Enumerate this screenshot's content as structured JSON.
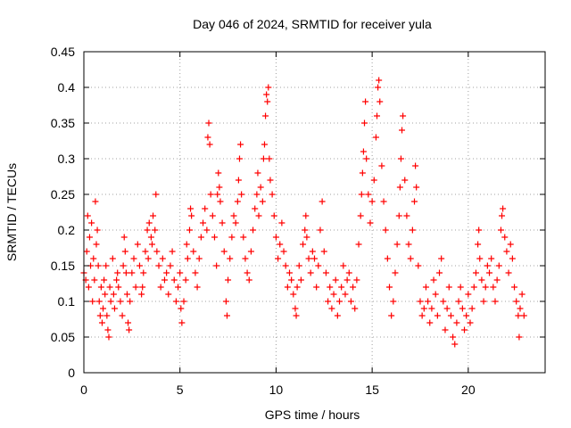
{
  "chart_data": {
    "type": "scatter",
    "title": "Day 046 of 2024, SRMTID for receiver yula",
    "xlabel": "GPS time / hours",
    "ylabel": "SRMTID / TECUs",
    "xlim": [
      0,
      24
    ],
    "ylim": [
      0,
      0.45
    ],
    "x_ticks": [
      0,
      5,
      10,
      15,
      20
    ],
    "x_tick_labels": [
      "0",
      "5",
      "10",
      "15",
      "20"
    ],
    "y_ticks": [
      0,
      0.05,
      0.1,
      0.15,
      0.2,
      0.25,
      0.3,
      0.35,
      0.4,
      0.45
    ],
    "y_tick_labels": [
      "0",
      "0.05",
      "0.1",
      "0.15",
      "0.2",
      "0.25",
      "0.3",
      "0.35",
      "0.4",
      "0.45"
    ],
    "grid": true,
    "marker": "+",
    "color": "#ff0000",
    "series": [
      {
        "name": "SRMTID",
        "points": [
          [
            0.0,
            0.14
          ],
          [
            0.1,
            0.13
          ],
          [
            0.15,
            0.17
          ],
          [
            0.2,
            0.22
          ],
          [
            0.25,
            0.12
          ],
          [
            0.3,
            0.19
          ],
          [
            0.35,
            0.15
          ],
          [
            0.4,
            0.21
          ],
          [
            0.45,
            0.1
          ],
          [
            0.5,
            0.16
          ],
          [
            0.55,
            0.13
          ],
          [
            0.6,
            0.24
          ],
          [
            0.65,
            0.18
          ],
          [
            0.7,
            0.2
          ],
          [
            0.75,
            0.15
          ],
          [
            0.8,
            0.1
          ],
          [
            0.85,
            0.08
          ],
          [
            0.9,
            0.12
          ],
          [
            0.95,
            0.07
          ],
          [
            1.0,
            0.09
          ],
          [
            1.05,
            0.13
          ],
          [
            1.1,
            0.11
          ],
          [
            1.15,
            0.15
          ],
          [
            1.2,
            0.08
          ],
          [
            1.25,
            0.06
          ],
          [
            1.3,
            0.05
          ],
          [
            1.35,
            0.12
          ],
          [
            1.4,
            0.1
          ],
          [
            1.5,
            0.16
          ],
          [
            1.55,
            0.11
          ],
          [
            1.6,
            0.09
          ],
          [
            1.7,
            0.13
          ],
          [
            1.75,
            0.14
          ],
          [
            1.8,
            0.12
          ],
          [
            1.9,
            0.1
          ],
          [
            2.0,
            0.08
          ],
          [
            2.05,
            0.15
          ],
          [
            2.1,
            0.19
          ],
          [
            2.15,
            0.17
          ],
          [
            2.2,
            0.14
          ],
          [
            2.25,
            0.11
          ],
          [
            2.3,
            0.07
          ],
          [
            2.35,
            0.06
          ],
          [
            2.4,
            0.1
          ],
          [
            2.5,
            0.14
          ],
          [
            2.6,
            0.16
          ],
          [
            2.7,
            0.12
          ],
          [
            2.8,
            0.18
          ],
          [
            2.9,
            0.15
          ],
          [
            3.0,
            0.11
          ],
          [
            3.05,
            0.12
          ],
          [
            3.1,
            0.14
          ],
          [
            3.2,
            0.17
          ],
          [
            3.3,
            0.2
          ],
          [
            3.35,
            0.16
          ],
          [
            3.4,
            0.21
          ],
          [
            3.5,
            0.19
          ],
          [
            3.55,
            0.18
          ],
          [
            3.6,
            0.22
          ],
          [
            3.7,
            0.2
          ],
          [
            3.75,
            0.25
          ],
          [
            3.8,
            0.17
          ],
          [
            3.9,
            0.15
          ],
          [
            4.0,
            0.12
          ],
          [
            4.1,
            0.16
          ],
          [
            4.2,
            0.13
          ],
          [
            4.3,
            0.14
          ],
          [
            4.4,
            0.11
          ],
          [
            4.5,
            0.15
          ],
          [
            4.6,
            0.17
          ],
          [
            4.7,
            0.13
          ],
          [
            4.8,
            0.1
          ],
          [
            4.9,
            0.12
          ],
          [
            5.0,
            0.14
          ],
          [
            5.05,
            0.09
          ],
          [
            5.1,
            0.07
          ],
          [
            5.2,
            0.1
          ],
          [
            5.3,
            0.13
          ],
          [
            5.35,
            0.18
          ],
          [
            5.4,
            0.16
          ],
          [
            5.5,
            0.2
          ],
          [
            5.55,
            0.23
          ],
          [
            5.6,
            0.22
          ],
          [
            5.7,
            0.17
          ],
          [
            5.8,
            0.14
          ],
          [
            5.9,
            0.12
          ],
          [
            6.0,
            0.16
          ],
          [
            6.1,
            0.19
          ],
          [
            6.2,
            0.21
          ],
          [
            6.3,
            0.23
          ],
          [
            6.4,
            0.2
          ],
          [
            6.45,
            0.33
          ],
          [
            6.5,
            0.35
          ],
          [
            6.55,
            0.32
          ],
          [
            6.6,
            0.25
          ],
          [
            6.7,
            0.22
          ],
          [
            6.8,
            0.19
          ],
          [
            6.9,
            0.15
          ],
          [
            6.95,
            0.25
          ],
          [
            7.0,
            0.28
          ],
          [
            7.05,
            0.26
          ],
          [
            7.1,
            0.24
          ],
          [
            7.2,
            0.21
          ],
          [
            7.3,
            0.17
          ],
          [
            7.4,
            0.1
          ],
          [
            7.45,
            0.08
          ],
          [
            7.5,
            0.13
          ],
          [
            7.6,
            0.16
          ],
          [
            7.7,
            0.19
          ],
          [
            7.8,
            0.22
          ],
          [
            7.9,
            0.21
          ],
          [
            8.0,
            0.24
          ],
          [
            8.05,
            0.27
          ],
          [
            8.1,
            0.3
          ],
          [
            8.15,
            0.32
          ],
          [
            8.2,
            0.25
          ],
          [
            8.3,
            0.19
          ],
          [
            8.4,
            0.16
          ],
          [
            8.5,
            0.14
          ],
          [
            8.6,
            0.13
          ],
          [
            8.7,
            0.17
          ],
          [
            8.8,
            0.2
          ],
          [
            8.9,
            0.23
          ],
          [
            9.0,
            0.25
          ],
          [
            9.05,
            0.28
          ],
          [
            9.1,
            0.22
          ],
          [
            9.2,
            0.26
          ],
          [
            9.3,
            0.24
          ],
          [
            9.35,
            0.3
          ],
          [
            9.4,
            0.32
          ],
          [
            9.45,
            0.36
          ],
          [
            9.5,
            0.39
          ],
          [
            9.55,
            0.38
          ],
          [
            9.6,
            0.4
          ],
          [
            9.65,
            0.3
          ],
          [
            9.7,
            0.27
          ],
          [
            9.8,
            0.25
          ],
          [
            9.9,
            0.22
          ],
          [
            10.0,
            0.19
          ],
          [
            10.1,
            0.16
          ],
          [
            10.2,
            0.18
          ],
          [
            10.3,
            0.21
          ],
          [
            10.4,
            0.17
          ],
          [
            10.5,
            0.15
          ],
          [
            10.6,
            0.12
          ],
          [
            10.7,
            0.14
          ],
          [
            10.8,
            0.13
          ],
          [
            10.9,
            0.11
          ],
          [
            11.0,
            0.09
          ],
          [
            11.05,
            0.08
          ],
          [
            11.1,
            0.12
          ],
          [
            11.2,
            0.15
          ],
          [
            11.3,
            0.13
          ],
          [
            11.4,
            0.18
          ],
          [
            11.5,
            0.2
          ],
          [
            11.55,
            0.22
          ],
          [
            11.6,
            0.19
          ],
          [
            11.7,
            0.16
          ],
          [
            11.8,
            0.14
          ],
          [
            11.9,
            0.17
          ],
          [
            12.0,
            0.16
          ],
          [
            12.1,
            0.12
          ],
          [
            12.2,
            0.15
          ],
          [
            12.3,
            0.2
          ],
          [
            12.4,
            0.24
          ],
          [
            12.5,
            0.17
          ],
          [
            12.6,
            0.14
          ],
          [
            12.7,
            0.1
          ],
          [
            12.8,
            0.12
          ],
          [
            12.9,
            0.09
          ],
          [
            13.0,
            0.11
          ],
          [
            13.1,
            0.13
          ],
          [
            13.2,
            0.08
          ],
          [
            13.3,
            0.1
          ],
          [
            13.4,
            0.12
          ],
          [
            13.5,
            0.15
          ],
          [
            13.6,
            0.11
          ],
          [
            13.7,
            0.13
          ],
          [
            13.8,
            0.14
          ],
          [
            13.9,
            0.1
          ],
          [
            14.0,
            0.12
          ],
          [
            14.1,
            0.09
          ],
          [
            14.2,
            0.13
          ],
          [
            14.3,
            0.18
          ],
          [
            14.4,
            0.22
          ],
          [
            14.45,
            0.25
          ],
          [
            14.5,
            0.28
          ],
          [
            14.55,
            0.31
          ],
          [
            14.6,
            0.35
          ],
          [
            14.65,
            0.38
          ],
          [
            14.7,
            0.3
          ],
          [
            14.8,
            0.25
          ],
          [
            14.9,
            0.21
          ],
          [
            15.0,
            0.24
          ],
          [
            15.1,
            0.27
          ],
          [
            15.2,
            0.33
          ],
          [
            15.25,
            0.36
          ],
          [
            15.3,
            0.4
          ],
          [
            15.35,
            0.41
          ],
          [
            15.4,
            0.38
          ],
          [
            15.5,
            0.29
          ],
          [
            15.6,
            0.24
          ],
          [
            15.7,
            0.2
          ],
          [
            15.8,
            0.16
          ],
          [
            15.9,
            0.12
          ],
          [
            16.0,
            0.08
          ],
          [
            16.1,
            0.1
          ],
          [
            16.2,
            0.14
          ],
          [
            16.3,
            0.18
          ],
          [
            16.4,
            0.22
          ],
          [
            16.45,
            0.26
          ],
          [
            16.5,
            0.3
          ],
          [
            16.55,
            0.34
          ],
          [
            16.6,
            0.36
          ],
          [
            16.7,
            0.27
          ],
          [
            16.8,
            0.22
          ],
          [
            16.9,
            0.18
          ],
          [
            17.0,
            0.16
          ],
          [
            17.1,
            0.2
          ],
          [
            17.2,
            0.24
          ],
          [
            17.25,
            0.29
          ],
          [
            17.3,
            0.26
          ],
          [
            17.4,
            0.15
          ],
          [
            17.5,
            0.1
          ],
          [
            17.6,
            0.08
          ],
          [
            17.7,
            0.09
          ],
          [
            17.8,
            0.12
          ],
          [
            17.9,
            0.1
          ],
          [
            18.0,
            0.07
          ],
          [
            18.1,
            0.09
          ],
          [
            18.2,
            0.13
          ],
          [
            18.3,
            0.11
          ],
          [
            18.4,
            0.08
          ],
          [
            18.5,
            0.14
          ],
          [
            18.6,
            0.16
          ],
          [
            18.7,
            0.1
          ],
          [
            18.8,
            0.06
          ],
          [
            18.9,
            0.09
          ],
          [
            19.0,
            0.12
          ],
          [
            19.1,
            0.08
          ],
          [
            19.2,
            0.05
          ],
          [
            19.3,
            0.04
          ],
          [
            19.4,
            0.07
          ],
          [
            19.5,
            0.1
          ],
          [
            19.6,
            0.12
          ],
          [
            19.7,
            0.09
          ],
          [
            19.8,
            0.06
          ],
          [
            19.9,
            0.08
          ],
          [
            20.0,
            0.11
          ],
          [
            20.1,
            0.07
          ],
          [
            20.2,
            0.09
          ],
          [
            20.3,
            0.12
          ],
          [
            20.4,
            0.14
          ],
          [
            20.5,
            0.18
          ],
          [
            20.55,
            0.2
          ],
          [
            20.6,
            0.16
          ],
          [
            20.7,
            0.13
          ],
          [
            20.8,
            0.1
          ],
          [
            20.9,
            0.12
          ],
          [
            21.0,
            0.15
          ],
          [
            21.1,
            0.14
          ],
          [
            21.2,
            0.16
          ],
          [
            21.3,
            0.12
          ],
          [
            21.4,
            0.1
          ],
          [
            21.5,
            0.13
          ],
          [
            21.6,
            0.15
          ],
          [
            21.7,
            0.2
          ],
          [
            21.75,
            0.22
          ],
          [
            21.8,
            0.23
          ],
          [
            21.9,
            0.19
          ],
          [
            22.0,
            0.17
          ],
          [
            22.1,
            0.14
          ],
          [
            22.2,
            0.18
          ],
          [
            22.3,
            0.16
          ],
          [
            22.4,
            0.12
          ],
          [
            22.5,
            0.1
          ],
          [
            22.6,
            0.08
          ],
          [
            22.65,
            0.05
          ],
          [
            22.7,
            0.09
          ],
          [
            22.8,
            0.11
          ],
          [
            22.9,
            0.08
          ]
        ]
      }
    ]
  }
}
